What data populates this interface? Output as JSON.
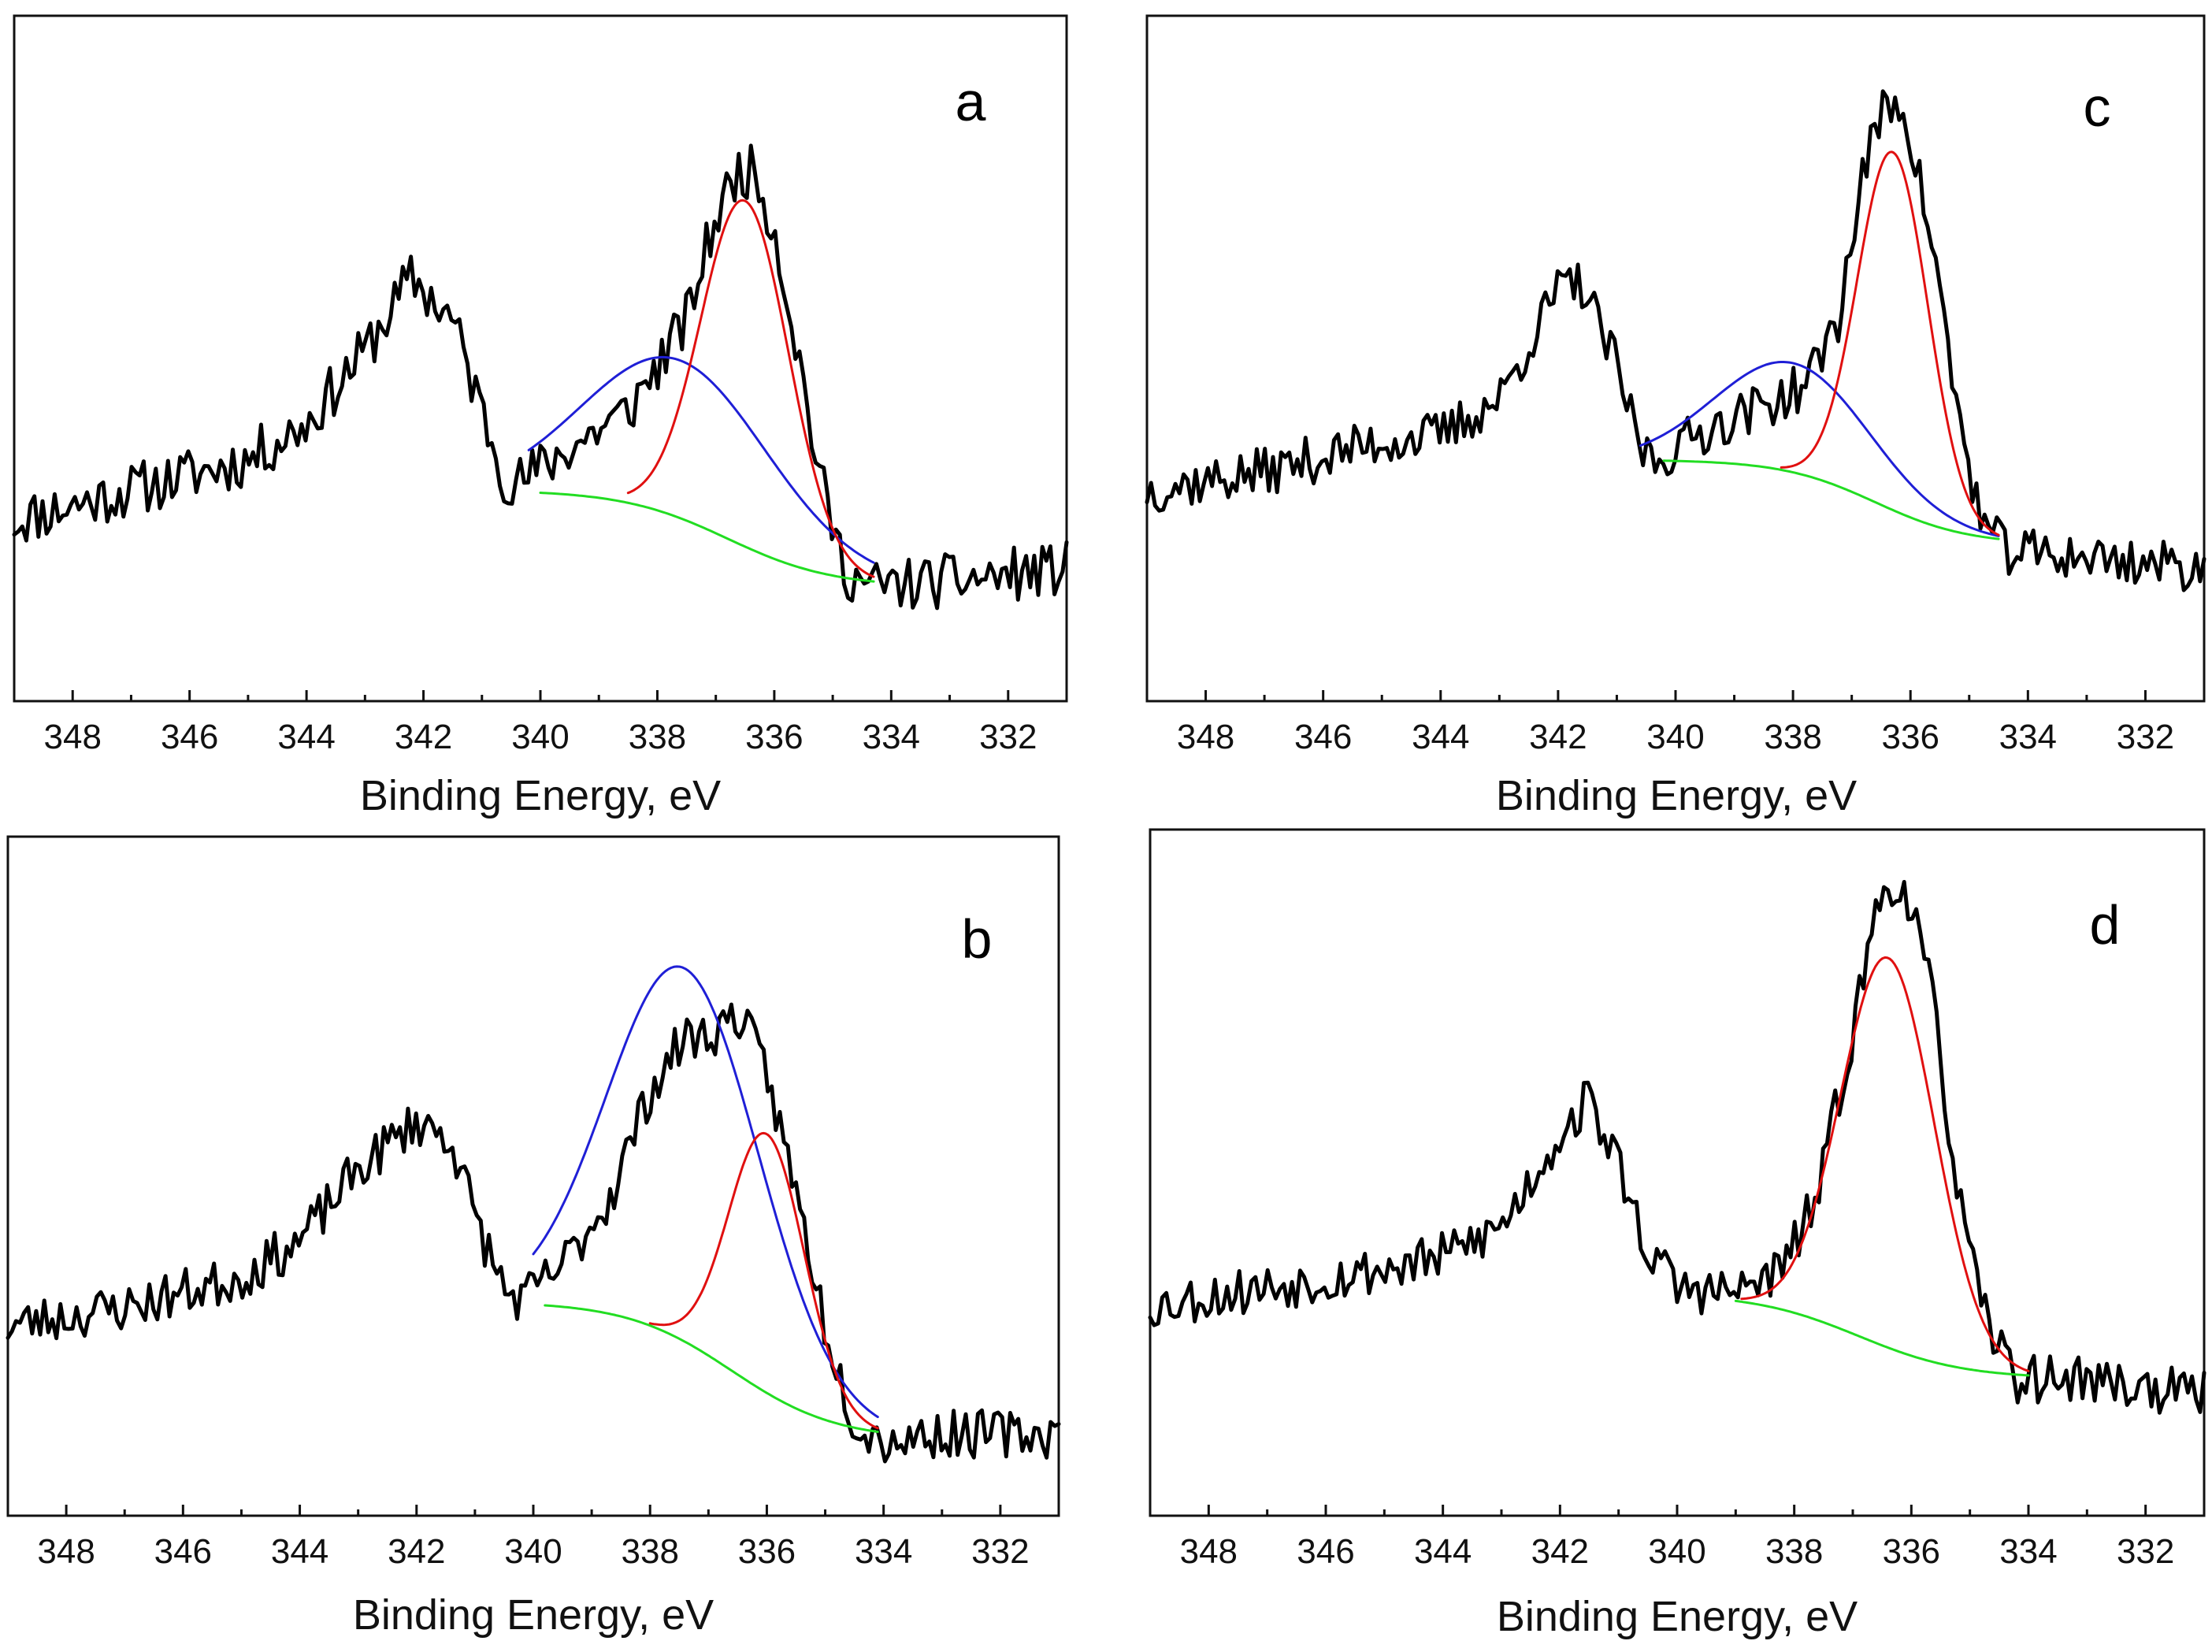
{
  "chart_data": [
    {
      "panel": "a",
      "type": "line",
      "xlabel": "Binding Energy, eV",
      "xlim": [
        349,
        331
      ],
      "ylim": [
        0,
        100
      ],
      "ticks": [
        "348",
        "346",
        "344",
        "342",
        "340",
        "338",
        "336",
        "334",
        "332"
      ],
      "series": [
        {
          "name": "raw",
          "color": "#000000",
          "noise": 4.5,
          "seed": 11,
          "x": [
            349,
            347,
            345,
            344,
            343,
            342.2,
            341.5,
            341,
            340.6,
            340.4,
            339.5,
            338.5,
            337.5,
            337,
            336.6,
            336.3,
            336,
            335.6,
            335.2,
            334.8,
            334.4,
            333,
            331
          ],
          "y": [
            22,
            27,
            32,
            38,
            50,
            62,
            55,
            40,
            29,
            28,
            34,
            40,
            55,
            72,
            80,
            79,
            70,
            50,
            28,
            14,
            11,
            12,
            14
          ]
        },
        {
          "name": "blue component",
          "color": "#1f1fd6",
          "peaks": [
            [
              337.6,
              26,
              1.6
            ]
          ],
          "bg": {
            "low": 11,
            "high": 27,
            "center": 336.8,
            "width": 0.9
          },
          "range": [
            340.2,
            334.3
          ]
        },
        {
          "name": "red component",
          "color": "#e01010",
          "peaks": [
            [
              336.5,
              57,
              0.75
            ]
          ],
          "bg": {
            "low": 11,
            "high": 27,
            "center": 336.8,
            "width": 0.9
          },
          "range": [
            338.5,
            334.3
          ]
        },
        {
          "name": "background",
          "color": "#22dd22",
          "peaks": [],
          "bg": {
            "low": 11,
            "high": 27,
            "center": 336.8,
            "width": 0.9
          },
          "range": [
            340,
            334.3
          ]
        }
      ]
    },
    {
      "panel": "b",
      "type": "line",
      "xlabel": "Binding Energy, eV",
      "xlim": [
        349,
        331
      ],
      "ylim": [
        0,
        100
      ],
      "ticks": [
        "348",
        "346",
        "344",
        "342",
        "340",
        "338",
        "336",
        "334",
        "332"
      ],
      "series": [
        {
          "name": "raw",
          "color": "#000000",
          "noise": 4.0,
          "seed": 23,
          "x": [
            349,
            347,
            345,
            344,
            343,
            342,
            341.4,
            341,
            340.5,
            340.2,
            339.5,
            338.7,
            338,
            337.4,
            337,
            336.5,
            336,
            335.4,
            335,
            334.5,
            334,
            333,
            331
          ],
          "y": [
            24,
            27,
            32,
            38,
            50,
            58,
            55,
            42,
            30,
            28,
            34,
            45,
            63,
            72,
            72,
            76,
            66,
            42,
            24,
            8,
            5,
            6,
            6
          ]
        },
        {
          "name": "blue component",
          "color": "#1f1fd6",
          "peaks": [
            [
              337.4,
              62,
              1.3
            ]
          ],
          "bg": {
            "low": 5,
            "high": 28,
            "center": 336.6,
            "width": 0.9
          },
          "range": [
            340.0,
            334.1
          ]
        },
        {
          "name": "red component",
          "color": "#e01010",
          "peaks": [
            [
              336.0,
              43,
              0.65
            ]
          ],
          "bg": {
            "low": 5,
            "high": 28,
            "center": 336.6,
            "width": 0.9
          },
          "range": [
            338.0,
            334.1
          ]
        },
        {
          "name": "background",
          "color": "#22dd22",
          "peaks": [],
          "bg": {
            "low": 5,
            "high": 28,
            "center": 336.6,
            "width": 0.9
          },
          "range": [
            339.8,
            334.1
          ]
        }
      ]
    },
    {
      "panel": "c",
      "type": "line",
      "xlabel": "Binding Energy, eV",
      "xlim": [
        349,
        331
      ],
      "ylim": [
        0,
        100
      ],
      "ticks": [
        "348",
        "346",
        "344",
        "342",
        "340",
        "338",
        "336",
        "334",
        "332"
      ],
      "series": [
        {
          "name": "raw",
          "color": "#000000",
          "noise": 4.0,
          "seed": 37,
          "x": [
            349,
            347,
            345,
            344,
            343,
            342,
            341.6,
            341,
            340.6,
            340.3,
            339.5,
            338.5,
            337.8,
            337.2,
            336.8,
            336.4,
            336.1,
            335.6,
            335.2,
            334.8,
            334.4,
            333,
            331
          ],
          "y": [
            27,
            30,
            35,
            36,
            42,
            60,
            61,
            47,
            34,
            32,
            37,
            41,
            44,
            56,
            80,
            91,
            90,
            66,
            40,
            22,
            17,
            16,
            14
          ]
        },
        {
          "name": "blue component",
          "color": "#1f1fd6",
          "peaks": [
            [
              338.0,
              18,
              1.3
            ]
          ],
          "bg": {
            "low": 18,
            "high": 32,
            "center": 336.6,
            "width": 0.8
          },
          "range": [
            340.6,
            334.5
          ]
        },
        {
          "name": "red component",
          "color": "#e01010",
          "peaks": [
            [
              336.3,
              59,
              0.6
            ]
          ],
          "bg": {
            "low": 18,
            "high": 32,
            "center": 336.6,
            "width": 0.8
          },
          "range": [
            338.2,
            334.5
          ]
        },
        {
          "name": "background",
          "color": "#22dd22",
          "peaks": [],
          "bg": {
            "low": 18,
            "high": 32,
            "center": 336.6,
            "width": 0.8
          },
          "range": [
            340.2,
            334.5
          ]
        }
      ]
    },
    {
      "panel": "d",
      "type": "line",
      "xlabel": "Binding Energy, eV",
      "xlim": [
        349,
        331
      ],
      "ylim": [
        0,
        100
      ],
      "ticks": [
        "348",
        "346",
        "344",
        "342",
        "340",
        "338",
        "336",
        "334",
        "332"
      ],
      "series": [
        {
          "name": "raw",
          "color": "#000000",
          "noise": 4.0,
          "seed": 53,
          "x": [
            349,
            347,
            345,
            344,
            343,
            342,
            341.5,
            341,
            340.5,
            340,
            339,
            338.2,
            337.6,
            337,
            336.6,
            336.3,
            336,
            335.6,
            335.2,
            334.8,
            334.2,
            333,
            331
          ],
          "y": [
            27,
            30,
            33,
            35,
            40,
            55,
            61,
            50,
            36,
            30,
            29,
            33,
            45,
            72,
            92,
            97,
            93,
            75,
            45,
            26,
            15,
            15,
            12
          ]
        },
        {
          "name": "red component",
          "color": "#e01010",
          "peaks": [
            [
              336.4,
              64,
              0.8
            ]
          ],
          "bg": {
            "low": 15,
            "high": 29,
            "center": 336.9,
            "width": 0.9
          },
          "range": [
            338.9,
            334.0
          ]
        },
        {
          "name": "background",
          "color": "#22dd22",
          "peaks": [],
          "bg": {
            "low": 15,
            "high": 29,
            "center": 336.9,
            "width": 0.9
          },
          "range": [
            339.0,
            334.0
          ]
        }
      ]
    }
  ]
}
